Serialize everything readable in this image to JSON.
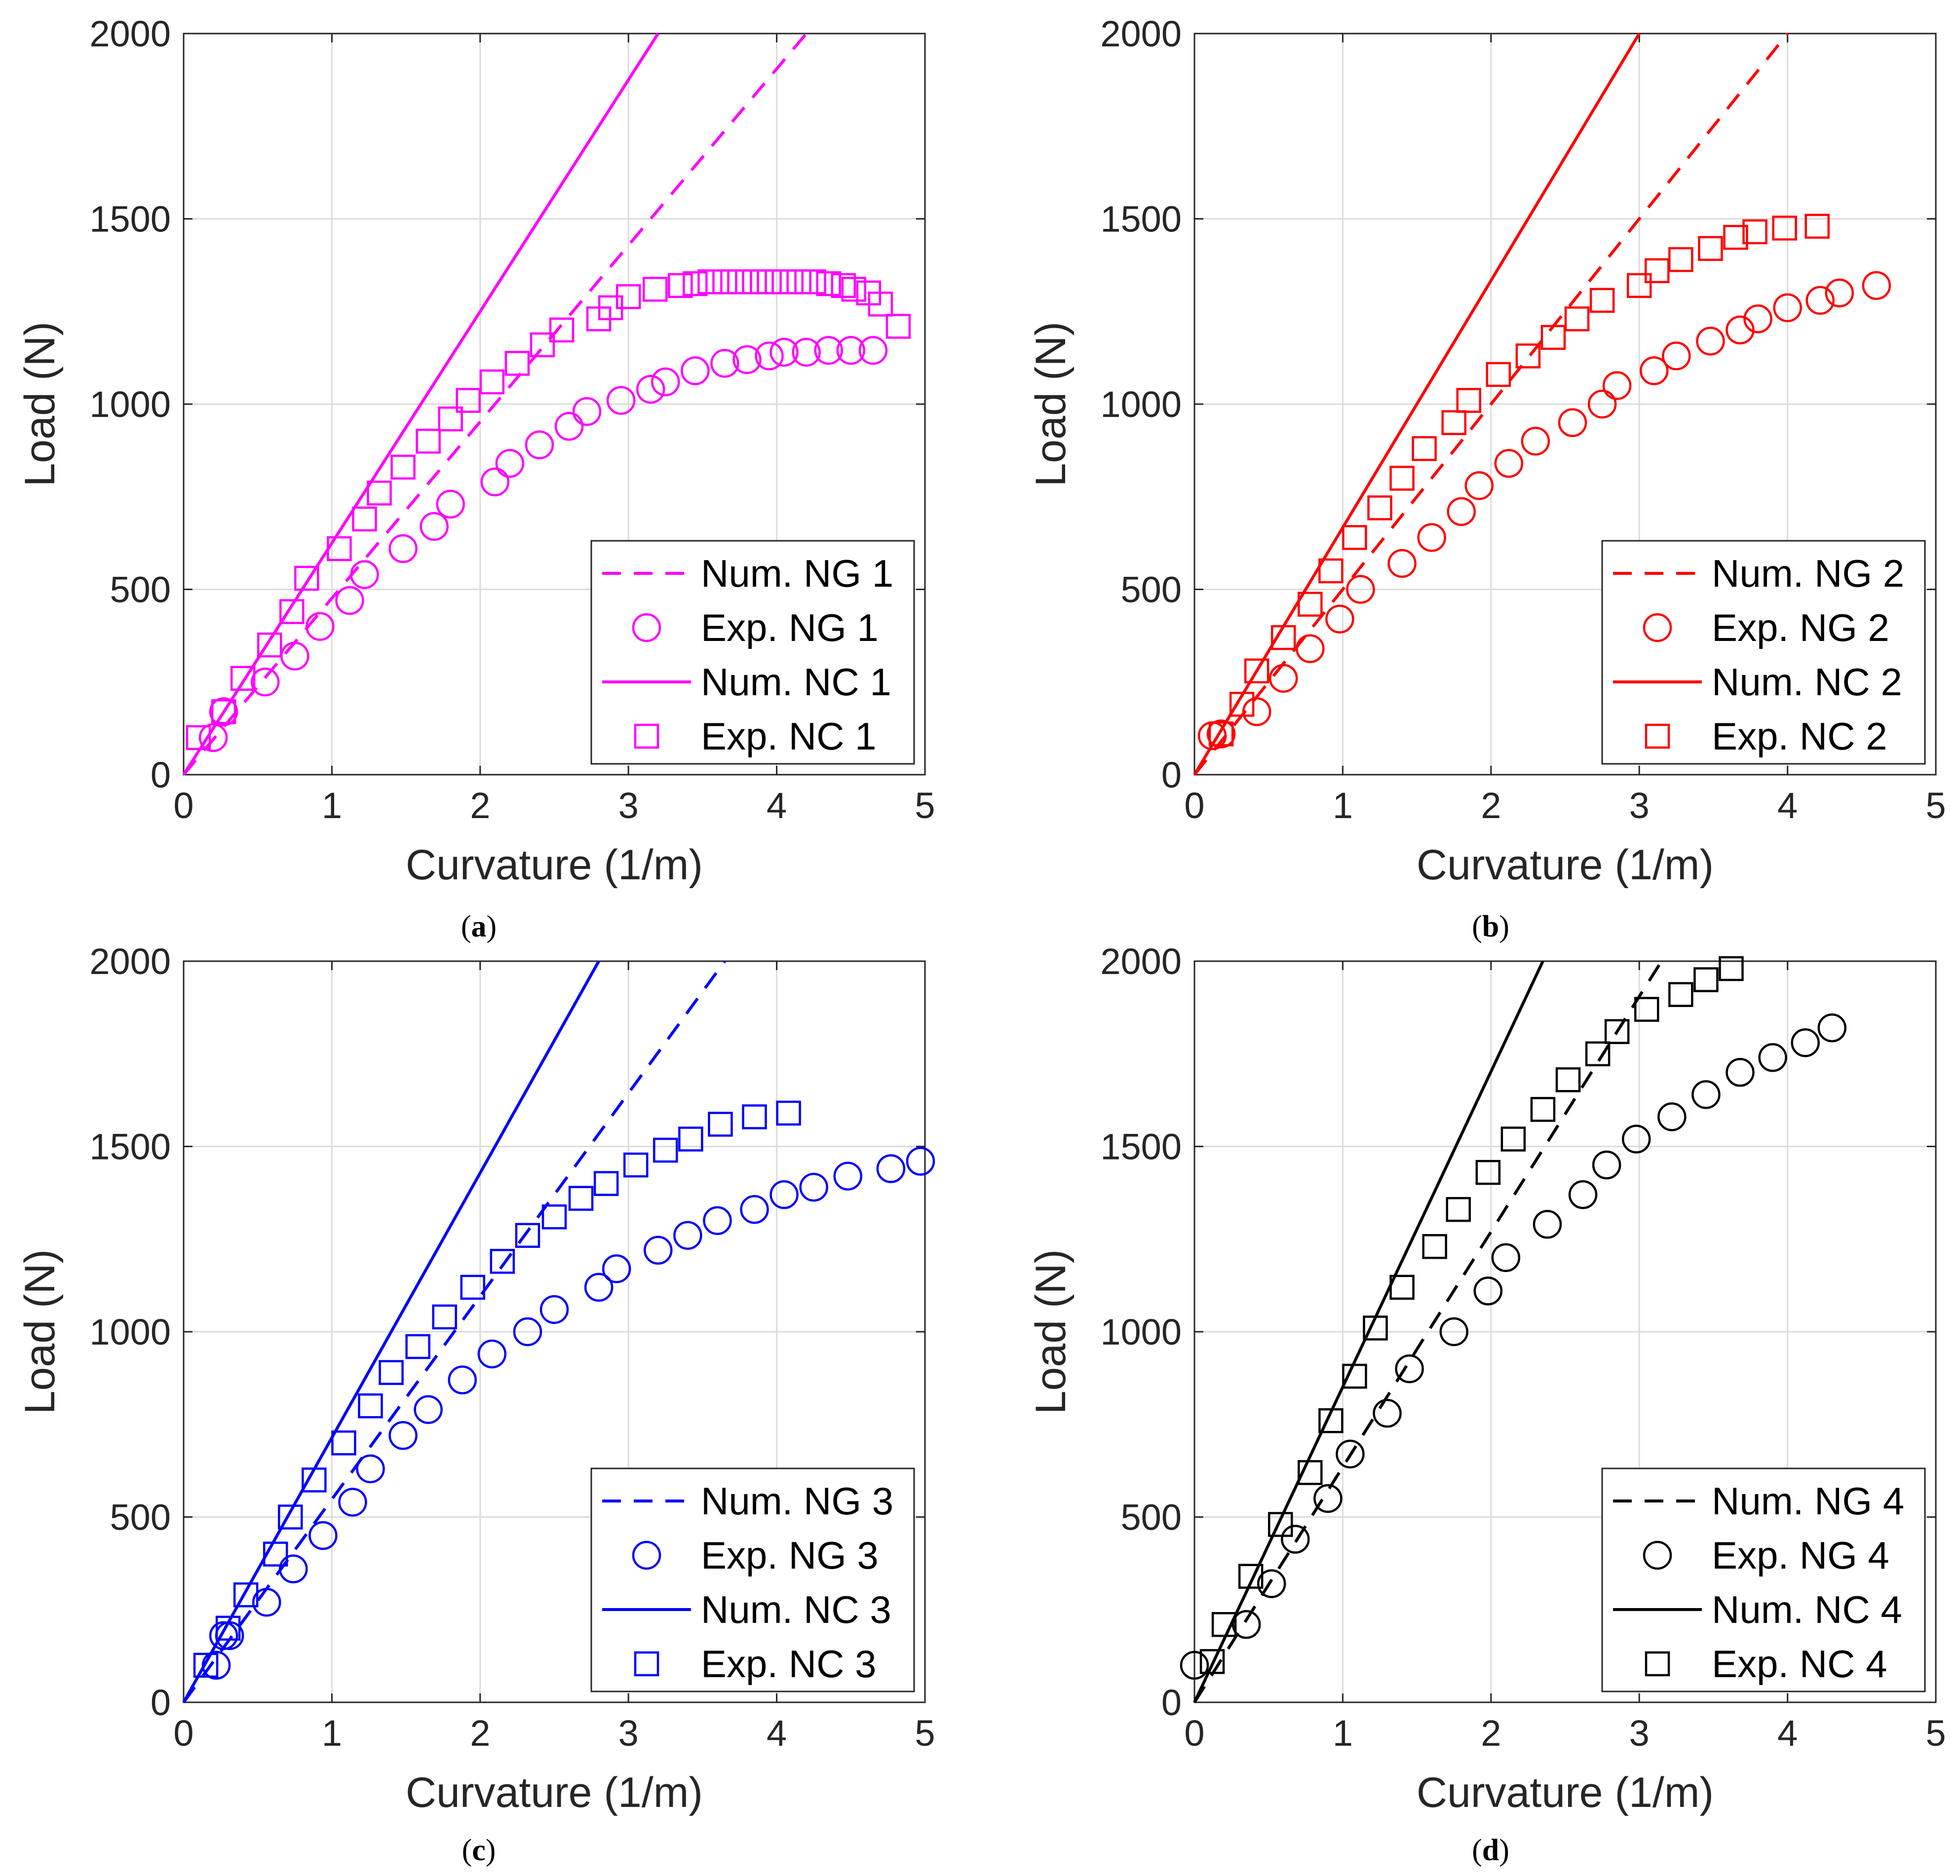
{
  "chart_data": [
    {
      "type": "line",
      "caption": "a",
      "xlabel": "Curvature (1/m)",
      "ylabel": "Load (N)",
      "xlim": [
        0,
        5
      ],
      "ylim": [
        0,
        2000
      ],
      "xticks": [
        "0",
        "1",
        "2",
        "3",
        "4",
        "5"
      ],
      "yticks": [
        "0",
        "500",
        "1000",
        "1500",
        "2000"
      ],
      "grid": true,
      "legend_position": "bottom-right",
      "color": "#ff00ff",
      "series": [
        {
          "name": "Num. NG 1",
          "style": "dashed",
          "x": [
            0,
            4.2
          ],
          "y": [
            0,
            2000
          ]
        },
        {
          "name": "Exp. NG 1",
          "style": "circle",
          "x": [
            0.2,
            0.27,
            0.55,
            0.75,
            0.92,
            1.12,
            1.22,
            1.48,
            1.69,
            1.8,
            2.1,
            2.2,
            2.4,
            2.6,
            2.72,
            2.95,
            3.15,
            3.25,
            3.45,
            3.65,
            3.8,
            3.95,
            4.05,
            4.2,
            4.35,
            4.5,
            4.65
          ],
          "y": [
            100,
            170,
            250,
            320,
            400,
            470,
            540,
            610,
            670,
            730,
            790,
            840,
            890,
            940,
            980,
            1010,
            1040,
            1060,
            1090,
            1110,
            1120,
            1130,
            1140,
            1140,
            1145,
            1145,
            1145
          ]
        },
        {
          "name": "Num. NC 1",
          "style": "solid",
          "x": [
            0,
            3.2
          ],
          "y": [
            0,
            2000
          ]
        },
        {
          "name": "Exp. NC 1",
          "style": "square",
          "x": [
            0.1,
            0.27,
            0.4,
            0.58,
            0.73,
            0.83,
            1.05,
            1.22,
            1.32,
            1.48,
            1.65,
            1.8,
            1.92,
            2.08,
            2.25,
            2.42,
            2.55,
            2.8,
            2.88,
            3.0,
            3.18,
            3.35,
            3.45,
            3.55,
            3.65,
            3.75,
            3.85,
            3.95,
            4.05,
            4.15,
            4.25,
            4.35,
            4.45,
            4.52,
            4.62,
            4.7,
            4.82
          ],
          "y": [
            100,
            170,
            260,
            350,
            440,
            530,
            610,
            690,
            760,
            830,
            900,
            960,
            1010,
            1060,
            1110,
            1160,
            1200,
            1230,
            1260,
            1290,
            1310,
            1320,
            1325,
            1330,
            1330,
            1330,
            1330,
            1330,
            1330,
            1330,
            1330,
            1325,
            1320,
            1310,
            1300,
            1270,
            1210
          ]
        }
      ]
    },
    {
      "type": "line",
      "caption": "b",
      "xlabel": "Curvature (1/m)",
      "ylabel": "Load (N)",
      "xlim": [
        0,
        5
      ],
      "ylim": [
        0,
        2000
      ],
      "xticks": [
        "0",
        "1",
        "2",
        "3",
        "4",
        "5"
      ],
      "yticks": [
        "0",
        "500",
        "1000",
        "1500",
        "2000"
      ],
      "grid": true,
      "legend_position": "bottom-right",
      "color": "#ff0000",
      "series": [
        {
          "name": "Num. NG 2",
          "style": "dashed",
          "x": [
            0,
            4.0
          ],
          "y": [
            0,
            2000
          ]
        },
        {
          "name": "Exp. NG 2",
          "style": "circle",
          "x": [
            0.12,
            0.18,
            0.42,
            0.6,
            0.78,
            0.98,
            1.12,
            1.4,
            1.6,
            1.8,
            1.92,
            2.12,
            2.3,
            2.55,
            2.75,
            2.85,
            3.1,
            3.25,
            3.48,
            3.68,
            3.8,
            4.0,
            4.22,
            4.35,
            4.6
          ],
          "y": [
            105,
            110,
            170,
            260,
            340,
            420,
            500,
            570,
            640,
            710,
            780,
            840,
            900,
            950,
            1000,
            1050,
            1090,
            1130,
            1170,
            1200,
            1230,
            1260,
            1280,
            1300,
            1320
          ]
        },
        {
          "name": "Num. NC 2",
          "style": "solid",
          "x": [
            0,
            3.0
          ],
          "y": [
            0,
            2000
          ]
        },
        {
          "name": "Exp. NC 2",
          "style": "square",
          "x": [
            0.18,
            0.32,
            0.42,
            0.6,
            0.78,
            0.92,
            1.08,
            1.25,
            1.4,
            1.55,
            1.75,
            1.85,
            2.05,
            2.25,
            2.42,
            2.58,
            2.75,
            3.0,
            3.12,
            3.28,
            3.48,
            3.65,
            3.78,
            3.98,
            4.2
          ],
          "y": [
            110,
            190,
            280,
            370,
            460,
            550,
            640,
            720,
            800,
            880,
            950,
            1010,
            1080,
            1130,
            1180,
            1230,
            1280,
            1320,
            1360,
            1390,
            1420,
            1450,
            1465,
            1475,
            1480
          ]
        }
      ]
    },
    {
      "type": "line",
      "caption": "c",
      "xlabel": "Curvature (1/m)",
      "ylabel": "Load (N)",
      "xlim": [
        0,
        5
      ],
      "ylim": [
        0,
        2000
      ],
      "xticks": [
        "0",
        "1",
        "2",
        "3",
        "4",
        "5"
      ],
      "yticks": [
        "0",
        "500",
        "1000",
        "1500",
        "2000"
      ],
      "grid": true,
      "legend_position": "bottom-right",
      "color": "#0000ff",
      "series": [
        {
          "name": "Num. NG 3",
          "style": "dashed",
          "x": [
            0,
            3.65
          ],
          "y": [
            0,
            2000
          ]
        },
        {
          "name": "Exp. NG 3",
          "style": "circle",
          "x": [
            0.22,
            0.27,
            0.31,
            0.56,
            0.74,
            0.94,
            1.14,
            1.26,
            1.48,
            1.65,
            1.88,
            2.08,
            2.32,
            2.5,
            2.8,
            2.92,
            3.2,
            3.4,
            3.6,
            3.85,
            4.05,
            4.25,
            4.48,
            4.77,
            4.97
          ],
          "y": [
            100,
            180,
            180,
            270,
            360,
            450,
            540,
            630,
            720,
            790,
            870,
            940,
            1000,
            1060,
            1120,
            1170,
            1220,
            1260,
            1300,
            1330,
            1370,
            1390,
            1420,
            1440,
            1460
          ]
        },
        {
          "name": "Num. NC 3",
          "style": "solid",
          "x": [
            0,
            2.8
          ],
          "y": [
            0,
            2000
          ]
        },
        {
          "name": "Exp. NC 3",
          "style": "square",
          "x": [
            0.15,
            0.3,
            0.42,
            0.62,
            0.72,
            0.88,
            1.08,
            1.26,
            1.4,
            1.58,
            1.76,
            1.95,
            2.15,
            2.32,
            2.5,
            2.68,
            2.85,
            3.05,
            3.25,
            3.42,
            3.62,
            3.85,
            4.08
          ],
          "y": [
            100,
            200,
            290,
            400,
            500,
            600,
            700,
            800,
            890,
            960,
            1040,
            1120,
            1190,
            1260,
            1310,
            1360,
            1400,
            1450,
            1490,
            1520,
            1560,
            1580,
            1590
          ]
        }
      ]
    },
    {
      "type": "line",
      "caption": "d",
      "xlabel": "Curvature (1/m)",
      "ylabel": "Load (N)",
      "xlim": [
        0,
        5
      ],
      "ylim": [
        0,
        2000
      ],
      "xticks": [
        "0",
        "1",
        "2",
        "3",
        "4",
        "5"
      ],
      "yticks": [
        "0",
        "500",
        "1000",
        "1500",
        "2000"
      ],
      "grid": true,
      "legend_position": "bottom-right",
      "color": "#000000",
      "series": [
        {
          "name": "Num. NG 4",
          "style": "dashed",
          "x": [
            0,
            3.15
          ],
          "y": [
            0,
            2000
          ]
        },
        {
          "name": "Exp. NG 4",
          "style": "circle",
          "x": [
            0,
            0.35,
            0.52,
            0.68,
            0.9,
            1.05,
            1.3,
            1.45,
            1.75,
            1.98,
            2.1,
            2.38,
            2.62,
            2.78,
            2.98,
            3.22,
            3.45,
            3.68,
            3.9,
            4.12,
            4.3
          ],
          "y": [
            100,
            210,
            320,
            440,
            550,
            670,
            780,
            900,
            1000,
            1110,
            1200,
            1290,
            1370,
            1450,
            1520,
            1580,
            1640,
            1700,
            1740,
            1780,
            1820
          ]
        },
        {
          "name": "Num. NC 4",
          "style": "solid",
          "x": [
            0,
            2.35
          ],
          "y": [
            0,
            2000
          ]
        },
        {
          "name": "Exp. NC 4",
          "style": "square",
          "x": [
            0.12,
            0.2,
            0.38,
            0.58,
            0.78,
            0.92,
            1.08,
            1.22,
            1.4,
            1.62,
            1.78,
            1.98,
            2.15,
            2.35,
            2.52,
            2.72,
            2.85,
            3.05,
            3.28,
            3.45,
            3.62
          ],
          "y": [
            110,
            210,
            340,
            480,
            620,
            760,
            880,
            1010,
            1120,
            1230,
            1330,
            1430,
            1520,
            1600,
            1680,
            1750,
            1810,
            1870,
            1910,
            1950,
            1980
          ]
        }
      ]
    }
  ]
}
